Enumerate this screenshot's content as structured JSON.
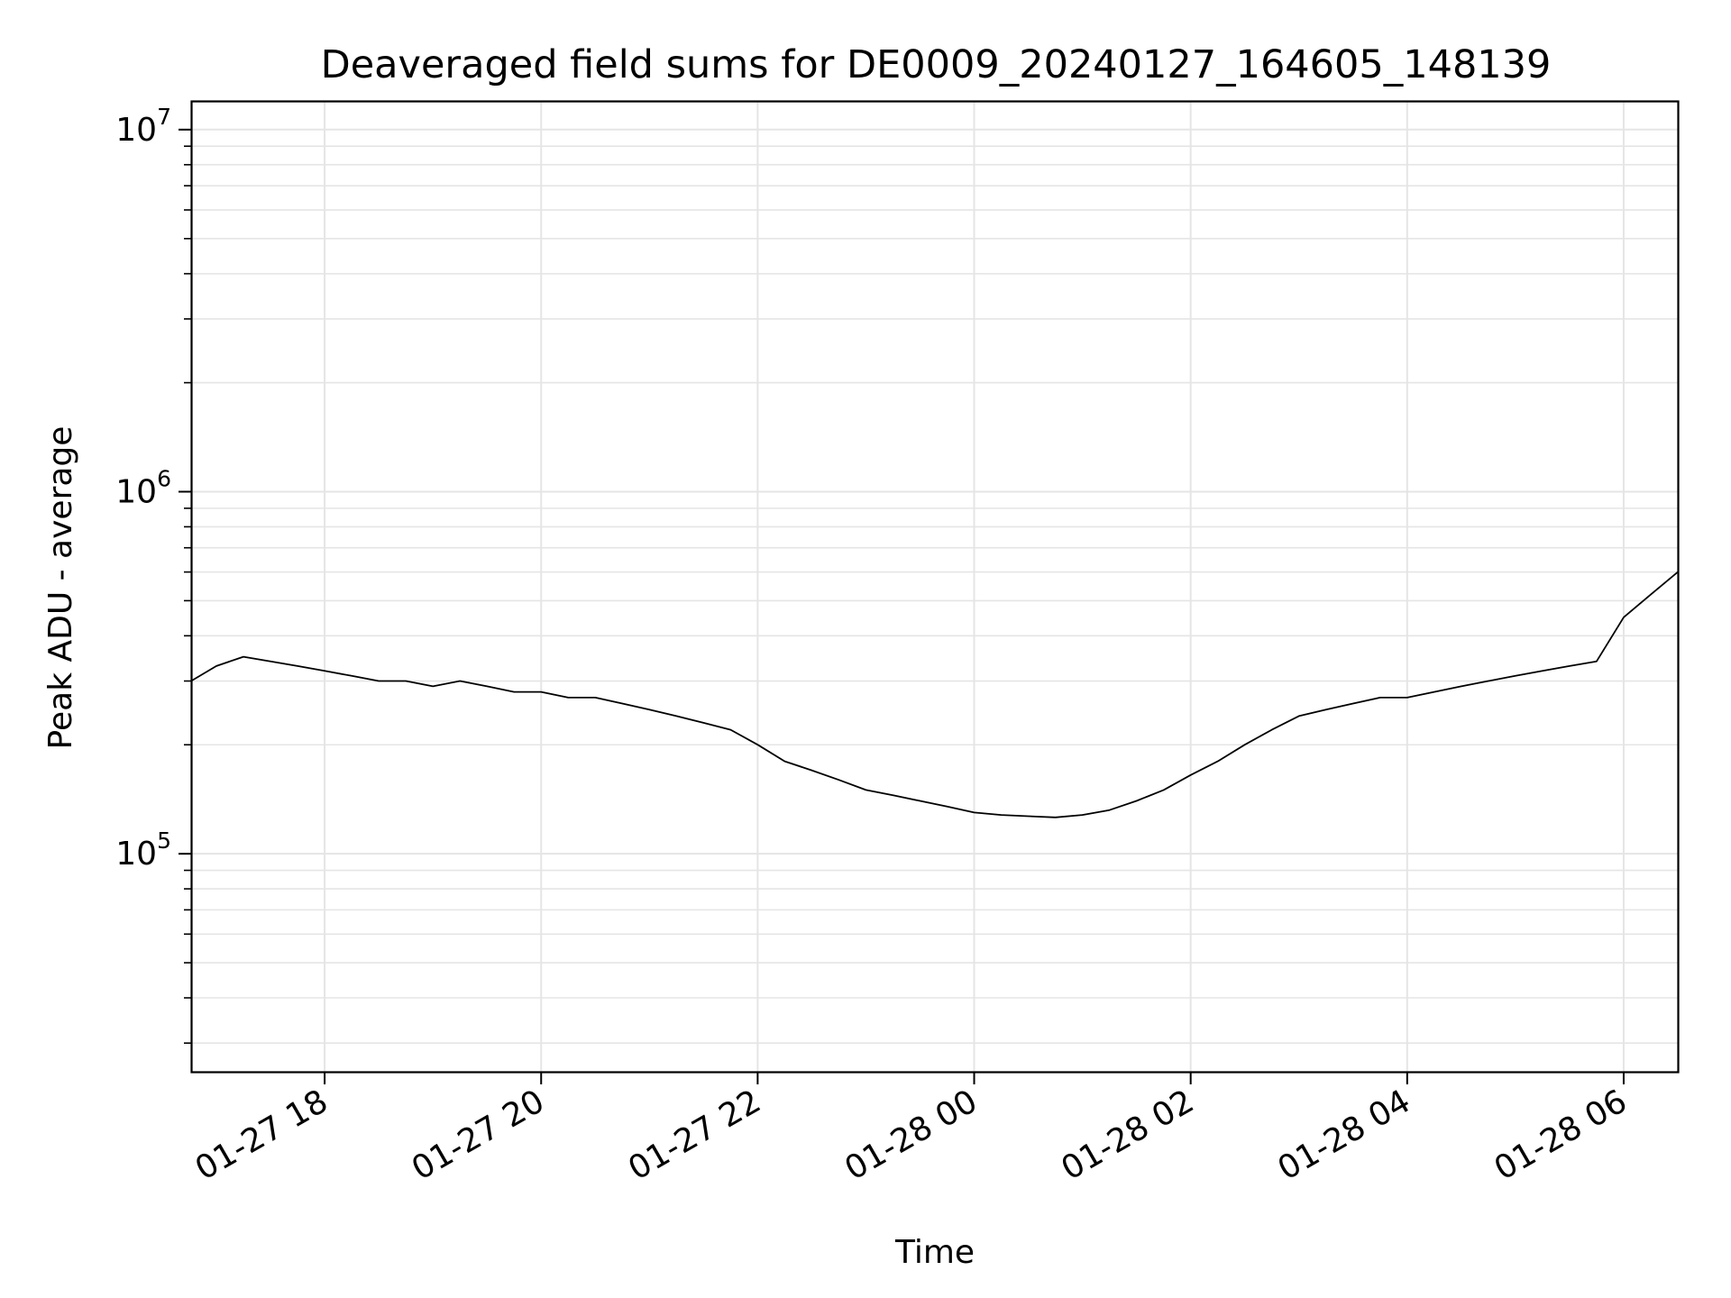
{
  "chart_data": {
    "type": "line",
    "title": "Deaveraged field sums for DE0009_20240127_164605_148139",
    "xlabel": "Time",
    "ylabel": "Peak ADU - average",
    "yscale": "log",
    "ylim": [
      25000,
      12000000
    ],
    "xlim": [
      "2024-01-27 16:46",
      "2024-01-28 06:30"
    ],
    "grid": true,
    "line_color": "#000000",
    "grid_color": "#e5e5e5",
    "x_ticks": [
      {
        "value": "2024-01-27 18:00",
        "label": "01-27 18"
      },
      {
        "value": "2024-01-27 20:00",
        "label": "01-27 20"
      },
      {
        "value": "2024-01-27 22:00",
        "label": "01-27 22"
      },
      {
        "value": "2024-01-28 00:00",
        "label": "01-28 00"
      },
      {
        "value": "2024-01-28 02:00",
        "label": "01-28 02"
      },
      {
        "value": "2024-01-28 04:00",
        "label": "01-28 04"
      },
      {
        "value": "2024-01-28 06:00",
        "label": "01-28 06"
      }
    ],
    "y_ticks": [
      {
        "value": 100000,
        "base": "10",
        "exp": "5"
      },
      {
        "value": 1000000,
        "base": "10",
        "exp": "6"
      },
      {
        "value": 10000000,
        "base": "10",
        "exp": "7"
      }
    ],
    "series": [
      {
        "x": [
          "2024-01-27 16:46",
          "2024-01-27 17:00",
          "2024-01-27 17:15",
          "2024-01-27 17:30",
          "2024-01-27 17:45",
          "2024-01-27 18:00",
          "2024-01-27 18:15",
          "2024-01-27 18:30",
          "2024-01-27 18:45",
          "2024-01-27 19:00",
          "2024-01-27 19:15",
          "2024-01-27 19:30",
          "2024-01-27 19:45",
          "2024-01-27 20:00",
          "2024-01-27 20:15",
          "2024-01-27 20:30",
          "2024-01-27 20:45",
          "2024-01-27 21:00",
          "2024-01-27 21:15",
          "2024-01-27 21:30",
          "2024-01-27 21:45",
          "2024-01-27 22:00",
          "2024-01-27 22:15",
          "2024-01-27 22:30",
          "2024-01-27 22:45",
          "2024-01-27 23:00",
          "2024-01-27 23:15",
          "2024-01-27 23:30",
          "2024-01-27 23:45",
          "2024-01-28 00:00",
          "2024-01-28 00:15",
          "2024-01-28 00:30",
          "2024-01-28 00:45",
          "2024-01-28 01:00",
          "2024-01-28 01:15",
          "2024-01-28 01:30",
          "2024-01-28 01:45",
          "2024-01-28 02:00",
          "2024-01-28 02:15",
          "2024-01-28 02:30",
          "2024-01-28 02:45",
          "2024-01-28 03:00",
          "2024-01-28 03:15",
          "2024-01-28 03:30",
          "2024-01-28 03:45",
          "2024-01-28 04:00",
          "2024-01-28 04:15",
          "2024-01-28 04:30",
          "2024-01-28 04:45",
          "2024-01-28 05:00",
          "2024-01-28 05:15",
          "2024-01-28 05:30",
          "2024-01-28 05:45",
          "2024-01-28 06:00",
          "2024-01-28 06:15",
          "2024-01-28 06:30"
        ],
        "y": [
          300000,
          330000,
          350000,
          340000,
          330000,
          320000,
          310000,
          300000,
          300000,
          290000,
          300000,
          290000,
          280000,
          280000,
          270000,
          270000,
          260000,
          250000,
          240000,
          230000,
          220000,
          200000,
          180000,
          170000,
          160000,
          150000,
          145000,
          140000,
          135000,
          130000,
          128000,
          127000,
          126000,
          128000,
          132000,
          140000,
          150000,
          165000,
          180000,
          200000,
          220000,
          240000,
          250000,
          260000,
          270000,
          270000,
          280000,
          290000,
          300000,
          310000,
          320000,
          330000,
          340000,
          450000,
          520000,
          600000
        ]
      }
    ]
  }
}
